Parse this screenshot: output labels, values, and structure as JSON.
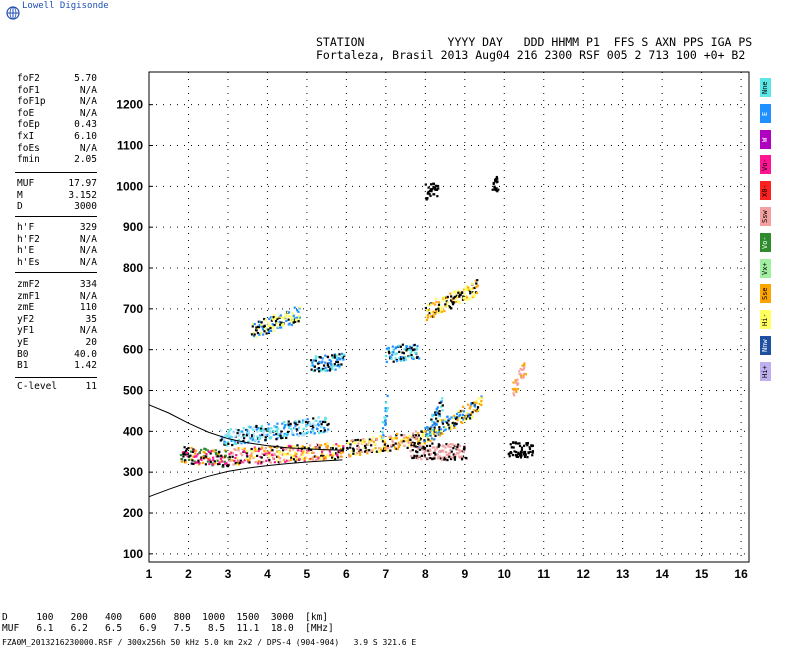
{
  "logo_label": "Lowell Digisonde",
  "header": {
    "line1": "STATION            YYYY DAY   DDD HHMM P1  FFS S AXN PPS IGA PS",
    "line2": "Fortaleza, Brasil 2013 Aug04 216 2300 RSF 005 2 713 100 +0+ B2"
  },
  "params": {
    "group1": [
      {
        "name": "foF2",
        "value": "5.70"
      },
      {
        "name": "foF1",
        "value": "N/A"
      },
      {
        "name": "foF1p",
        "value": "N/A"
      },
      {
        "name": "foE",
        "value": "N/A"
      },
      {
        "name": "foEp",
        "value": "0.43"
      },
      {
        "name": "fxI",
        "value": "6.10"
      },
      {
        "name": "foEs",
        "value": "N/A"
      },
      {
        "name": "fmin",
        "value": "2.05"
      }
    ],
    "group2": [
      {
        "name": "MUF",
        "value": "17.97"
      },
      {
        "name": "M",
        "value": "3.152"
      },
      {
        "name": "D",
        "value": "3000"
      }
    ],
    "group3": [
      {
        "name": "h'F",
        "value": "329"
      },
      {
        "name": "h'F2",
        "value": "N/A"
      },
      {
        "name": "h'E",
        "value": "N/A"
      },
      {
        "name": "h'Es",
        "value": "N/A"
      }
    ],
    "group4": [
      {
        "name": "zmF2",
        "value": "334"
      },
      {
        "name": "zmF1",
        "value": "N/A"
      },
      {
        "name": "zmE",
        "value": "110"
      },
      {
        "name": "yF2",
        "value": "35"
      },
      {
        "name": "yF1",
        "value": "N/A"
      },
      {
        "name": "yE",
        "value": "20"
      },
      {
        "name": "B0",
        "value": "40.0"
      },
      {
        "name": "B1",
        "value": "1.42"
      }
    ],
    "clevel": {
      "name": "C-level",
      "value": "11"
    }
  },
  "legend": [
    {
      "label": "Nne",
      "color": "#5ce6e6"
    },
    {
      "label": "E",
      "color": "#1e90ff"
    },
    {
      "label": "W",
      "color": "#b000c0"
    },
    {
      "label": "Vo-",
      "color": "#ff1493"
    },
    {
      "label": "X0-",
      "color": "#ff2020"
    },
    {
      "label": "Ssw",
      "color": "#f4a0a0"
    },
    {
      "label": "Vo-",
      "color": "#2e8b2e"
    },
    {
      "label": "Vx+",
      "color": "#a0f0a0"
    },
    {
      "label": "Sse",
      "color": "#ffa500"
    },
    {
      "label": "Hi-",
      "color": "#ffff60"
    },
    {
      "label": "Nnw",
      "color": "#1f4fa0"
    },
    {
      "label": "Hi+",
      "color": "#c0b0f0"
    }
  ],
  "footer": {
    "d_row": "D     100   200   400   600   800  1000  1500  3000  [km]",
    "muf_row": "MUF   6.1   6.2   6.5   6.9   7.5   8.5  11.1  18.0  [MHz]",
    "file_info": "FZA0M_2013216230000.RSF / 300x256h 50 kHz 5.0 km 2x2 / DPS-4 (904-904)   3.9 S 321.6 E"
  },
  "chart_data": {
    "type": "scatter",
    "xlim": [
      1,
      16.2
    ],
    "ylim": [
      80,
      1280
    ],
    "xticks": [
      "1",
      "2",
      "3",
      "4",
      "5",
      "6",
      "7",
      "8",
      "9",
      "10",
      "11",
      "12",
      "13",
      "14",
      "15",
      "16"
    ],
    "yticks": [
      "100",
      "200",
      "300",
      "400",
      "500",
      "600",
      "700",
      "800",
      "900",
      "1000",
      "1100",
      "1200"
    ],
    "grid": "dotted",
    "profile_curves": [
      {
        "name": "upper",
        "points": [
          [
            1,
            465
          ],
          [
            1.5,
            445
          ],
          [
            2,
            420
          ],
          [
            2.5,
            398
          ],
          [
            3,
            382
          ],
          [
            3.5,
            372
          ],
          [
            4,
            365
          ],
          [
            4.5,
            360
          ],
          [
            5,
            357
          ],
          [
            5.5,
            355
          ],
          [
            5.9,
            354
          ]
        ]
      },
      {
        "name": "lower",
        "points": [
          [
            1,
            240
          ],
          [
            1.5,
            258
          ],
          [
            2,
            275
          ],
          [
            2.5,
            290
          ],
          [
            3,
            302
          ],
          [
            3.5,
            310
          ],
          [
            4,
            316
          ],
          [
            4.5,
            321
          ],
          [
            5,
            325
          ],
          [
            5.5,
            328
          ],
          [
            5.9,
            330
          ]
        ]
      }
    ],
    "traces": [
      {
        "x0": 1.8,
        "x1": 3.0,
        "y0": 345,
        "y1": 335,
        "colors": [
          "#ff1493",
          "#000000",
          "#2e8b2e",
          "#ffa500"
        ]
      },
      {
        "x0": 3.0,
        "x1": 5.9,
        "y0": 340,
        "y1": 355,
        "colors": [
          "#ffa500",
          "#ff1493",
          "#000000",
          "#f4a0a0",
          "#ffff60"
        ]
      },
      {
        "x0": 2.8,
        "x1": 5.5,
        "y0": 385,
        "y1": 420,
        "colors": [
          "#5ce6e6",
          "#1e90ff",
          "#000000",
          "#b0e0ff"
        ]
      },
      {
        "x0": 6.0,
        "x1": 7.8,
        "y0": 360,
        "y1": 385,
        "colors": [
          "#ffa500",
          "#ffff60",
          "#000000",
          "#f4a0a0"
        ]
      },
      {
        "x0": 7.8,
        "x1": 9.4,
        "y0": 380,
        "y1": 470,
        "colors": [
          "#ffa500",
          "#ffff60",
          "#000000",
          "#1e90ff"
        ]
      },
      {
        "x0": 7.6,
        "x1": 9.0,
        "y0": 355,
        "y1": 350,
        "colors": [
          "#f4a0a0",
          "#000000"
        ]
      },
      {
        "x0": 8.0,
        "x1": 9.3,
        "y0": 695,
        "y1": 755,
        "colors": [
          "#ffa500",
          "#ffff60",
          "#000000"
        ]
      },
      {
        "x0": 3.6,
        "x1": 4.8,
        "y0": 650,
        "y1": 690,
        "colors": [
          "#000000",
          "#ffff60",
          "#1e90ff"
        ]
      },
      {
        "x0": 7.0,
        "x1": 7.8,
        "y0": 590,
        "y1": 600,
        "colors": [
          "#1e90ff",
          "#000000",
          "#5ce6e6"
        ]
      },
      {
        "x0": 5.1,
        "x1": 5.9,
        "y0": 565,
        "y1": 575,
        "colors": [
          "#1e90ff",
          "#5ce6e6",
          "#000000"
        ]
      },
      {
        "x0": 10.1,
        "x1": 10.7,
        "y0": 360,
        "y1": 355,
        "colors": [
          "#000000"
        ]
      },
      {
        "x0": 8.0,
        "x1": 8.3,
        "y0": 988,
        "y1": 995,
        "colors": [
          "#000000"
        ]
      },
      {
        "x0": 9.7,
        "x1": 9.8,
        "y0": 1005,
        "y1": 1010,
        "colors": [
          "#000000"
        ]
      },
      {
        "x0": 10.2,
        "x1": 10.5,
        "y0": 500,
        "y1": 560,
        "colors": [
          "#ffa500",
          "#f4a0a0"
        ]
      },
      {
        "x0": 6.9,
        "x1": 7.0,
        "y0": 395,
        "y1": 470,
        "colors": [
          "#1e90ff",
          "#5ce6e6"
        ]
      },
      {
        "x0": 8.0,
        "x1": 8.4,
        "y0": 395,
        "y1": 470,
        "colors": [
          "#1e90ff",
          "#5ce6e6",
          "#000000"
        ]
      }
    ]
  }
}
